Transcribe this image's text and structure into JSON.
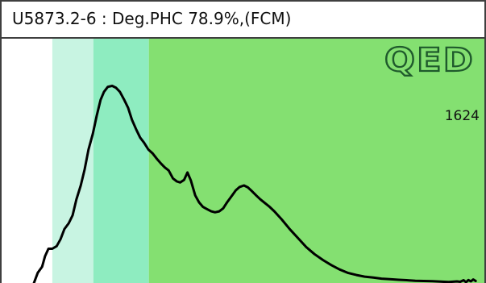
{
  "title": "U5873.2-6 : Deg.PHC 78.9%,(FCM)",
  "logo_text": "QED",
  "count_label": "1624",
  "colors": {
    "background": "#ffffff",
    "band_light": "#c8f4e2",
    "band_mid": "#8eecc0",
    "band_main": "#84e071",
    "curve": "#000000",
    "logo": "#1f5a2c",
    "border": "#3f3f3f"
  },
  "chart_data": {
    "type": "line",
    "title": "U5873.2-6 : Deg.PHC 78.9%,(FCM)",
    "xlabel": "",
    "ylabel": "",
    "xlim": [
      0,
      100
    ],
    "ylim": [
      0,
      100
    ],
    "grid": false,
    "legend": "none",
    "bands": [
      {
        "x_start": 10.5,
        "x_end": 19,
        "color": "#c8f4e2"
      },
      {
        "x_start": 19,
        "x_end": 30.5,
        "color": "#8eecc0"
      },
      {
        "x_start": 30.5,
        "x_end": 100,
        "color": "#84e071"
      }
    ],
    "series": [
      {
        "x": [
          6.7,
          7.5,
          8.4,
          9.0,
          9.7,
          10.5,
          11.4,
          12.2,
          13.0,
          13.9,
          14.7,
          15.5,
          16.4,
          17.2,
          18.0,
          18.9,
          19.7,
          20.5,
          21.2,
          22.0,
          22.9,
          23.7,
          24.5,
          25.4,
          26.2,
          27.0,
          27.9,
          28.7,
          29.5,
          30.4,
          31.3,
          32.1,
          33.0,
          33.8,
          34.6,
          35.5,
          36.3,
          37.0,
          37.8,
          38.5,
          39.2,
          40.1,
          40.9,
          41.7,
          42.6,
          43.4,
          44.2,
          45.1,
          45.9,
          46.7,
          47.6,
          48.5,
          49.3,
          50.2,
          51.0,
          51.9,
          52.8,
          53.6,
          54.5,
          55.4,
          56.5,
          58.0,
          59.7,
          61.4,
          63.1,
          64.8,
          66.6,
          68.3,
          70.0,
          71.8,
          73.5,
          75.2,
          77.0,
          78.7,
          80.4,
          82.2,
          83.9,
          85.7,
          87.4,
          89.2,
          90.9,
          92.6,
          94.3,
          95.0,
          95.7,
          96.2,
          96.7,
          97.2,
          97.7,
          98.2
        ],
        "y": [
          0.0,
          5.2,
          8.2,
          13.5,
          17.2,
          17.2,
          18.5,
          22.0,
          27.1,
          30.0,
          34.0,
          42.0,
          49.0,
          57.0,
          67.0,
          75.0,
          84.0,
          92.0,
          96.0,
          98.5,
          99.0,
          98.0,
          96.0,
          92.0,
          88.0,
          82.0,
          77.0,
          73.0,
          70.5,
          67.0,
          65.0,
          62.5,
          60.0,
          58.0,
          56.5,
          52.5,
          51.0,
          50.5,
          51.8,
          55.5,
          51.5,
          44.0,
          40.5,
          38.2,
          37.0,
          36.0,
          35.5,
          36.0,
          37.5,
          40.5,
          43.5,
          46.5,
          48.2,
          49.0,
          48.0,
          46.0,
          43.8,
          42.0,
          40.2,
          38.5,
          36.0,
          32.0,
          27.0,
          22.5,
          18.0,
          14.5,
          11.5,
          9.0,
          6.8,
          5.0,
          4.0,
          3.2,
          2.7,
          2.2,
          1.9,
          1.6,
          1.4,
          1.1,
          1.0,
          0.9,
          0.7,
          0.5,
          0.8,
          0.6,
          1.4,
          0.4,
          1.5,
          0.8,
          1.8,
          1.0
        ]
      }
    ]
  }
}
